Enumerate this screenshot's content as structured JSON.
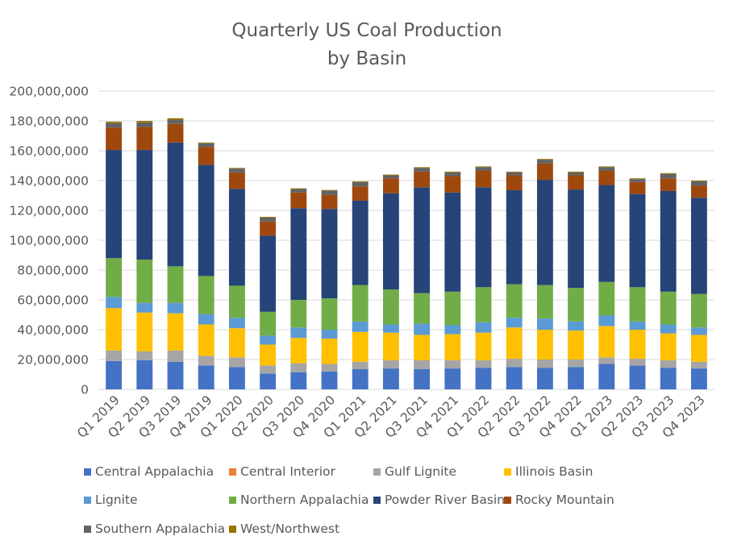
{
  "chart_data": {
    "type": "bar",
    "stacked": true,
    "title": "Quarterly US Coal Production",
    "subtitle": "by Basin",
    "xlabel": "",
    "ylabel": "",
    "ylim": [
      0,
      200000000
    ],
    "yticks": [
      0,
      20000000,
      40000000,
      60000000,
      80000000,
      100000000,
      120000000,
      140000000,
      160000000,
      180000000,
      200000000
    ],
    "ytick_labels": [
      "0",
      "20,000,000",
      "40,000,000",
      "60,000,000",
      "80,000,000",
      "100,000,000",
      "120,000,000",
      "140,000,000",
      "160,000,000",
      "180,000,000",
      "200,000,000"
    ],
    "grid": true,
    "legend_position": "bottom",
    "categories": [
      "Q1 2019",
      "Q2 2019",
      "Q3 2019",
      "Q4 2019",
      "Q1 2020",
      "Q2 2020",
      "Q3 2020",
      "Q4 2020",
      "Q1 2021",
      "Q2 2021",
      "Q3 2021",
      "Q4 2021",
      "Q1 2022",
      "Q2 2022",
      "Q3 2022",
      "Q4 2022",
      "Q1 2023",
      "Q2 2023",
      "Q3 2023",
      "Q4 2023"
    ],
    "series": [
      {
        "name": "Central Appalachia",
        "color": "#4472C4",
        "values": [
          19000000,
          19500000,
          18500000,
          16000000,
          15000000,
          10500000,
          11500000,
          12000000,
          13500000,
          14000000,
          13500000,
          14000000,
          14500000,
          15000000,
          14500000,
          15000000,
          17000000,
          16000000,
          14500000,
          14000000
        ]
      },
      {
        "name": "Central Interior",
        "color": "#ED7D31",
        "values": [
          0,
          0,
          0,
          0,
          0,
          0,
          0,
          0,
          0,
          0,
          0,
          0,
          0,
          0,
          0,
          0,
          0,
          0,
          0,
          0
        ]
      },
      {
        "name": "Gulf Lignite",
        "color": "#A5A5A5",
        "values": [
          7000000,
          6000000,
          7500000,
          6500000,
          6500000,
          5500000,
          6000000,
          5000000,
          5000000,
          5500000,
          6000000,
          5500000,
          5000000,
          5500000,
          5500000,
          5000000,
          4500000,
          4500000,
          5000000,
          4500000
        ]
      },
      {
        "name": "Illinois Basin",
        "color": "#FFC000",
        "values": [
          28500000,
          26000000,
          25000000,
          21000000,
          19500000,
          14000000,
          17000000,
          17000000,
          20000000,
          18500000,
          17000000,
          17500000,
          18500000,
          21000000,
          20000000,
          19500000,
          21000000,
          19500000,
          18000000,
          18000000
        ]
      },
      {
        "name": "Lignite",
        "color": "#5B9BD5",
        "values": [
          7500000,
          6500000,
          7000000,
          7000000,
          7000000,
          6000000,
          7000000,
          6000000,
          7000000,
          5500000,
          7500000,
          6000000,
          7000000,
          6500000,
          7500000,
          6000000,
          7000000,
          5500000,
          6000000,
          5000000
        ]
      },
      {
        "name": "Northern Appalachia",
        "color": "#70AD47",
        "values": [
          26000000,
          29000000,
          24500000,
          25500000,
          21500000,
          16000000,
          18500000,
          21000000,
          24500000,
          23500000,
          20500000,
          22500000,
          23500000,
          22500000,
          22500000,
          22500000,
          22500000,
          23000000,
          22000000,
          22500000
        ]
      },
      {
        "name": "Powder River Basin",
        "color": "#264478",
        "values": [
          72500000,
          73500000,
          83000000,
          74500000,
          65000000,
          51000000,
          61500000,
          60000000,
          56500000,
          64500000,
          71000000,
          66500000,
          67000000,
          63000000,
          70500000,
          66000000,
          65000000,
          62500000,
          67500000,
          64500000
        ]
      },
      {
        "name": "Rocky Mountain",
        "color": "#9E480E",
        "values": [
          15000000,
          15500000,
          12500000,
          12000000,
          11000000,
          9500000,
          10500000,
          9500000,
          9500000,
          10000000,
          10500000,
          11000000,
          11000000,
          10000000,
          11000000,
          9500000,
          9500000,
          8000000,
          8500000,
          8000000
        ]
      },
      {
        "name": "Southern Appalachia",
        "color": "#636363",
        "values": [
          3000000,
          3000000,
          2800000,
          2500000,
          2500000,
          2700000,
          2300000,
          2700000,
          3000000,
          2000000,
          2500000,
          2500000,
          2500000,
          2000000,
          2500000,
          2000000,
          2500000,
          2000000,
          3000000,
          3000000
        ]
      },
      {
        "name": "West/Northwest",
        "color": "#997300",
        "values": [
          1000000,
          1000000,
          1000000,
          500000,
          500000,
          500000,
          500000,
          500000,
          500000,
          500000,
          500000,
          500000,
          500000,
          500000,
          500000,
          500000,
          500000,
          500000,
          500000,
          500000
        ]
      }
    ]
  }
}
